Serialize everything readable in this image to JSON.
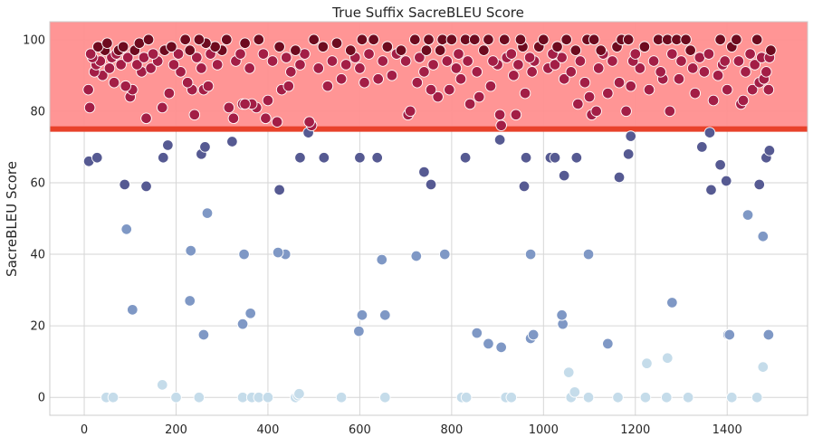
{
  "chart_data": {
    "type": "scatter",
    "title": "True Suffix SacreBLEU Score",
    "xlabel": "",
    "ylabel": "SacreBLEU Score",
    "xlim": [
      -75,
      1575
    ],
    "ylim": [
      -5,
      105
    ],
    "xticks": [
      0,
      200,
      400,
      600,
      800,
      1000,
      1200,
      1400
    ],
    "yticks": [
      0,
      20,
      40,
      60,
      80,
      100
    ],
    "grid": true,
    "threshold_line": 75,
    "highlight_band": [
      75,
      105
    ],
    "colors": {
      "band": "#ff8f8f",
      "threshold": "#e8412a",
      "grid": "#d6d6d6",
      "low": "#c5dcea",
      "mid": "#7f98c5",
      "upper": "#565a92",
      "high": "#a31e46",
      "top": "#6e0b1f"
    },
    "points": [
      [
        9,
        86
      ],
      [
        12,
        81
      ],
      [
        14,
        96
      ],
      [
        18,
        95
      ],
      [
        22,
        91
      ],
      [
        26,
        93
      ],
      [
        30,
        98
      ],
      [
        35,
        94
      ],
      [
        40,
        90
      ],
      [
        45,
        97
      ],
      [
        50,
        99
      ],
      [
        55,
        92
      ],
      [
        60,
        95
      ],
      [
        65,
        88
      ],
      [
        70,
        96
      ],
      [
        75,
        97
      ],
      [
        80,
        93
      ],
      [
        85,
        98
      ],
      [
        90,
        87
      ],
      [
        95,
        95
      ],
      [
        100,
        84
      ],
      [
        105,
        86
      ],
      [
        110,
        97
      ],
      [
        115,
        93
      ],
      [
        120,
        99
      ],
      [
        125,
        91
      ],
      [
        130,
        95
      ],
      [
        135,
        78
      ],
      [
        140,
        100
      ],
      [
        145,
        92
      ],
      [
        150,
        96
      ],
      [
        160,
        94
      ],
      [
        170,
        81
      ],
      [
        175,
        97
      ],
      [
        185,
        85
      ],
      [
        190,
        98
      ],
      [
        195,
        93
      ],
      [
        205,
        96
      ],
      [
        210,
        91
      ],
      [
        220,
        100
      ],
      [
        225,
        88
      ],
      [
        230,
        97
      ],
      [
        235,
        86
      ],
      [
        240,
        79
      ],
      [
        245,
        95
      ],
      [
        250,
        100
      ],
      [
        255,
        92
      ],
      [
        260,
        86
      ],
      [
        265,
        99
      ],
      [
        270,
        87
      ],
      [
        275,
        96
      ],
      [
        285,
        98
      ],
      [
        290,
        93
      ],
      [
        300,
        97
      ],
      [
        310,
        100
      ],
      [
        315,
        81
      ],
      [
        325,
        78
      ],
      [
        330,
        94
      ],
      [
        340,
        96
      ],
      [
        345,
        82
      ],
      [
        350,
        99
      ],
      [
        360,
        92
      ],
      [
        365,
        82
      ],
      [
        375,
        81
      ],
      [
        380,
        100
      ],
      [
        390,
        96
      ],
      [
        395,
        78
      ],
      [
        400,
        83
      ],
      [
        410,
        94
      ],
      [
        420,
        77
      ],
      [
        425,
        98
      ],
      [
        430,
        86
      ],
      [
        440,
        95
      ],
      [
        445,
        87
      ],
      [
        450,
        91
      ],
      [
        460,
        97
      ],
      [
        470,
        93
      ],
      [
        480,
        96
      ],
      [
        490,
        77
      ],
      [
        495,
        76
      ],
      [
        500,
        100
      ],
      [
        510,
        92
      ],
      [
        520,
        98
      ],
      [
        530,
        87
      ],
      [
        540,
        94
      ],
      [
        550,
        99
      ],
      [
        560,
        89
      ],
      [
        570,
        93
      ],
      [
        580,
        97
      ],
      [
        590,
        95
      ],
      [
        600,
        92
      ],
      [
        605,
        100
      ],
      [
        610,
        88
      ],
      [
        620,
        96
      ],
      [
        630,
        100
      ],
      [
        640,
        89
      ],
      [
        650,
        94
      ],
      [
        660,
        98
      ],
      [
        670,
        90
      ],
      [
        680,
        96
      ],
      [
        690,
        97
      ],
      [
        700,
        94
      ],
      [
        705,
        79
      ],
      [
        710,
        80
      ],
      [
        720,
        100
      ],
      [
        725,
        88
      ],
      [
        730,
        95
      ],
      [
        740,
        91
      ],
      [
        745,
        97
      ],
      [
        750,
        100
      ],
      [
        755,
        86
      ],
      [
        760,
        93
      ],
      [
        770,
        84
      ],
      [
        775,
        97
      ],
      [
        780,
        100
      ],
      [
        790,
        94
      ],
      [
        795,
        86
      ],
      [
        800,
        100
      ],
      [
        810,
        92
      ],
      [
        815,
        96
      ],
      [
        820,
        89
      ],
      [
        830,
        100
      ],
      [
        835,
        94
      ],
      [
        840,
        82
      ],
      [
        850,
        100
      ],
      [
        855,
        91
      ],
      [
        860,
        84
      ],
      [
        870,
        97
      ],
      [
        880,
        100
      ],
      [
        885,
        87
      ],
      [
        890,
        94
      ],
      [
        900,
        93
      ],
      [
        905,
        79
      ],
      [
        908,
        76
      ],
      [
        915,
        100
      ],
      [
        920,
        95
      ],
      [
        930,
        96
      ],
      [
        935,
        90
      ],
      [
        940,
        79
      ],
      [
        945,
        93
      ],
      [
        950,
        100
      ],
      [
        955,
        98
      ],
      [
        960,
        85
      ],
      [
        970,
        95
      ],
      [
        975,
        91
      ],
      [
        980,
        94
      ],
      [
        990,
        98
      ],
      [
        1000,
        100
      ],
      [
        1010,
        92
      ],
      [
        1020,
        96
      ],
      [
        1025,
        93
      ],
      [
        1030,
        98
      ],
      [
        1040,
        95
      ],
      [
        1045,
        89
      ],
      [
        1050,
        100
      ],
      [
        1060,
        91
      ],
      [
        1070,
        97
      ],
      [
        1075,
        82
      ],
      [
        1080,
        94
      ],
      [
        1090,
        88
      ],
      [
        1095,
        100
      ],
      [
        1100,
        84
      ],
      [
        1105,
        79
      ],
      [
        1110,
        100
      ],
      [
        1115,
        80
      ],
      [
        1120,
        92
      ],
      [
        1125,
        97
      ],
      [
        1130,
        96
      ],
      [
        1140,
        85
      ],
      [
        1150,
        94
      ],
      [
        1160,
        98
      ],
      [
        1165,
        88
      ],
      [
        1170,
        100
      ],
      [
        1180,
        80
      ],
      [
        1185,
        100
      ],
      [
        1190,
        87
      ],
      [
        1195,
        94
      ],
      [
        1200,
        96
      ],
      [
        1210,
        92
      ],
      [
        1220,
        98
      ],
      [
        1230,
        86
      ],
      [
        1240,
        94
      ],
      [
        1250,
        100
      ],
      [
        1255,
        91
      ],
      [
        1260,
        89
      ],
      [
        1270,
        100
      ],
      [
        1275,
        80
      ],
      [
        1280,
        96
      ],
      [
        1290,
        100
      ],
      [
        1295,
        89
      ],
      [
        1300,
        94
      ],
      [
        1310,
        100
      ],
      [
        1320,
        97
      ],
      [
        1325,
        92
      ],
      [
        1330,
        85
      ],
      [
        1340,
        95
      ],
      [
        1350,
        91
      ],
      [
        1360,
        96
      ],
      [
        1370,
        83
      ],
      [
        1380,
        90
      ],
      [
        1385,
        100
      ],
      [
        1390,
        93
      ],
      [
        1395,
        94
      ],
      [
        1400,
        86
      ],
      [
        1410,
        98
      ],
      [
        1420,
        100
      ],
      [
        1425,
        94
      ],
      [
        1430,
        82
      ],
      [
        1435,
        83
      ],
      [
        1440,
        91
      ],
      [
        1450,
        96
      ],
      [
        1455,
        86
      ],
      [
        1460,
        93
      ],
      [
        1465,
        100
      ],
      [
        1470,
        88
      ],
      [
        1475,
        95
      ],
      [
        1480,
        89
      ],
      [
        1485,
        91
      ],
      [
        1490,
        86
      ],
      [
        1492,
        95
      ],
      [
        1495,
        97
      ],
      [
        10,
        66
      ],
      [
        28,
        67
      ],
      [
        88,
        59.5
      ],
      [
        92,
        47
      ],
      [
        105,
        24.5
      ],
      [
        135,
        59
      ],
      [
        172,
        67
      ],
      [
        182,
        70.5
      ],
      [
        255,
        68
      ],
      [
        263,
        70
      ],
      [
        268,
        51.5
      ],
      [
        232,
        41
      ],
      [
        230,
        27
      ],
      [
        260,
        17.5
      ],
      [
        322,
        71.5
      ],
      [
        348,
        40
      ],
      [
        350,
        82
      ],
      [
        362,
        23.5
      ],
      [
        345,
        20.5
      ],
      [
        425,
        58
      ],
      [
        422,
        40.5
      ],
      [
        438,
        40
      ],
      [
        470,
        67
      ],
      [
        488,
        74
      ],
      [
        522,
        67
      ],
      [
        598,
        18.5
      ],
      [
        600,
        67
      ],
      [
        605,
        23
      ],
      [
        638,
        67
      ],
      [
        648,
        38.5
      ],
      [
        655,
        23
      ],
      [
        723,
        39.5
      ],
      [
        740,
        63
      ],
      [
        755,
        59.5
      ],
      [
        785,
        40
      ],
      [
        830,
        67
      ],
      [
        855,
        18
      ],
      [
        880,
        15
      ],
      [
        905,
        72
      ],
      [
        908,
        14
      ],
      [
        958,
        59
      ],
      [
        962,
        67
      ],
      [
        972,
        40
      ],
      [
        972,
        16.5
      ],
      [
        978,
        17.5
      ],
      [
        1015,
        67
      ],
      [
        1025,
        67
      ],
      [
        1040,
        23
      ],
      [
        1042,
        20.5
      ],
      [
        1045,
        62
      ],
      [
        1072,
        67
      ],
      [
        1098,
        40
      ],
      [
        1140,
        15
      ],
      [
        1165,
        61.5
      ],
      [
        1185,
        68
      ],
      [
        1190,
        73
      ],
      [
        1280,
        26.5
      ],
      [
        1345,
        70
      ],
      [
        1362,
        74
      ],
      [
        1365,
        58
      ],
      [
        1385,
        65
      ],
      [
        1398,
        60.5
      ],
      [
        1402,
        17.5
      ],
      [
        1405,
        17.5
      ],
      [
        1445,
        51
      ],
      [
        1470,
        59.5
      ],
      [
        1478,
        45
      ],
      [
        1485,
        67
      ],
      [
        1492,
        69
      ],
      [
        1490,
        17.5
      ],
      [
        48,
        0
      ],
      [
        63,
        0
      ],
      [
        170,
        3.5
      ],
      [
        200,
        0
      ],
      [
        250,
        0
      ],
      [
        345,
        0
      ],
      [
        365,
        0
      ],
      [
        380,
        0
      ],
      [
        400,
        0
      ],
      [
        460,
        0
      ],
      [
        465,
        0.5
      ],
      [
        468,
        1
      ],
      [
        560,
        0
      ],
      [
        655,
        0
      ],
      [
        822,
        0
      ],
      [
        832,
        0
      ],
      [
        918,
        0
      ],
      [
        930,
        0
      ],
      [
        1055,
        7
      ],
      [
        1060,
        0
      ],
      [
        1068,
        1.5
      ],
      [
        1098,
        0
      ],
      [
        1162,
        0
      ],
      [
        1222,
        0
      ],
      [
        1225,
        9.5
      ],
      [
        1268,
        0
      ],
      [
        1270,
        11
      ],
      [
        1315,
        0
      ],
      [
        1410,
        0
      ],
      [
        1465,
        0
      ],
      [
        1478,
        8.5
      ]
    ]
  }
}
